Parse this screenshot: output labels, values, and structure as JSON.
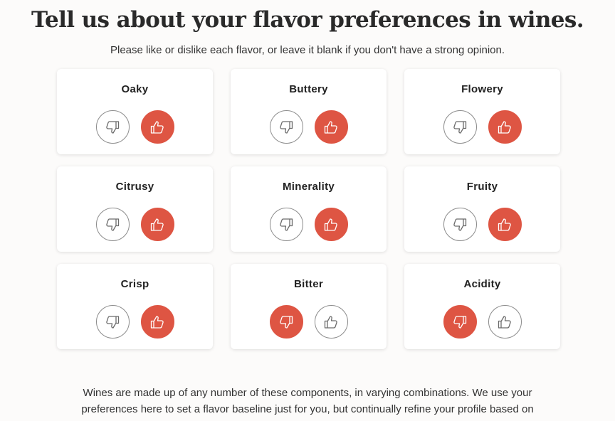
{
  "page": {
    "title": "Tell us about your flavor preferences in wines.",
    "subtitle": "Please like or dislike each flavor, or leave it blank if you don't have a strong opinion."
  },
  "icons": {
    "dislike": "thumbs-down-icon",
    "like": "thumbs-up-icon"
  },
  "colors": {
    "accent": "#de5543",
    "card_bg": "#ffffff",
    "page_bg": "#fcfbfa"
  },
  "flavors": [
    {
      "label": "Oaky",
      "selection": "like"
    },
    {
      "label": "Buttery",
      "selection": "like"
    },
    {
      "label": "Flowery",
      "selection": "like"
    },
    {
      "label": "Citrusy",
      "selection": "like"
    },
    {
      "label": "Minerality",
      "selection": "like"
    },
    {
      "label": "Fruity",
      "selection": "like"
    },
    {
      "label": "Crisp",
      "selection": "like"
    },
    {
      "label": "Bitter",
      "selection": "dislike"
    },
    {
      "label": "Acidity",
      "selection": "dislike"
    }
  ],
  "footer": {
    "line1": "Wines are made up of any number of these components, in varying combinations. We use your",
    "line2": "preferences here to set a flavor baseline just for you, but continually refine your profile based on"
  }
}
